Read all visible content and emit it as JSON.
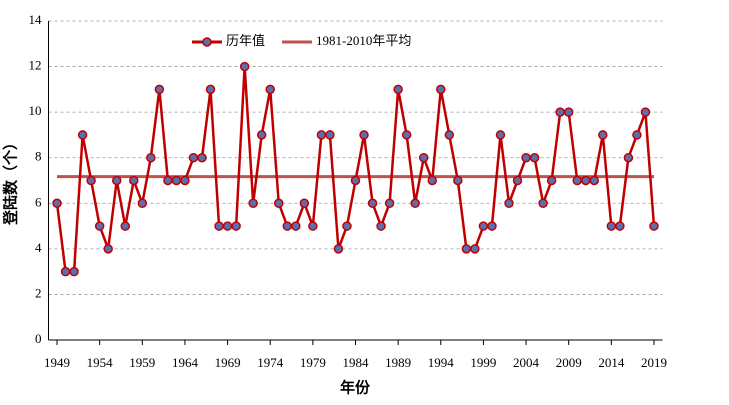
{
  "chart_data": {
    "type": "line",
    "x_label": "年份",
    "y_label": "登陆数（个）",
    "x": [
      1949,
      1950,
      1951,
      1952,
      1953,
      1954,
      1955,
      1956,
      1957,
      1958,
      1959,
      1960,
      1961,
      1962,
      1963,
      1964,
      1965,
      1966,
      1967,
      1968,
      1969,
      1970,
      1971,
      1972,
      1973,
      1974,
      1975,
      1976,
      1977,
      1978,
      1979,
      1980,
      1981,
      1982,
      1983,
      1984,
      1985,
      1986,
      1987,
      1988,
      1989,
      1990,
      1991,
      1992,
      1993,
      1994,
      1995,
      1996,
      1997,
      1998,
      1999,
      2000,
      2001,
      2002,
      2003,
      2004,
      2005,
      2006,
      2007,
      2008,
      2009,
      2010,
      2011,
      2012,
      2013,
      2014,
      2015,
      2016,
      2017,
      2018,
      2019
    ],
    "series": [
      {
        "name": "历年值",
        "color": "#c00000",
        "marker_color": "#5b6fb0",
        "values": [
          6,
          3,
          3,
          9,
          7,
          5,
          4,
          7,
          5,
          7,
          6,
          8,
          11,
          7,
          7,
          7,
          8,
          8,
          11,
          5,
          5,
          5,
          12,
          6,
          9,
          11,
          6,
          5,
          5,
          6,
          5,
          9,
          9,
          4,
          5,
          7,
          9,
          6,
          5,
          6,
          11,
          9,
          6,
          8,
          7,
          11,
          9,
          7,
          4,
          4,
          5,
          5,
          9,
          6,
          7,
          8,
          8,
          6,
          7,
          10,
          10,
          7,
          7,
          7,
          9,
          5,
          5,
          8,
          9,
          10,
          5
        ]
      }
    ],
    "reference_line": {
      "name": "1981-2010年平均",
      "value": 7.17,
      "color": "#c0504d"
    },
    "xlim": [
      1948,
      2020
    ],
    "xticks": [
      1949,
      1954,
      1959,
      1964,
      1969,
      1974,
      1979,
      1984,
      1989,
      1994,
      1999,
      2004,
      2009,
      2014,
      2019
    ],
    "ylim": [
      0,
      14
    ],
    "yticks": [
      0,
      2,
      4,
      6,
      8,
      10,
      12,
      14
    ],
    "grid": true
  }
}
